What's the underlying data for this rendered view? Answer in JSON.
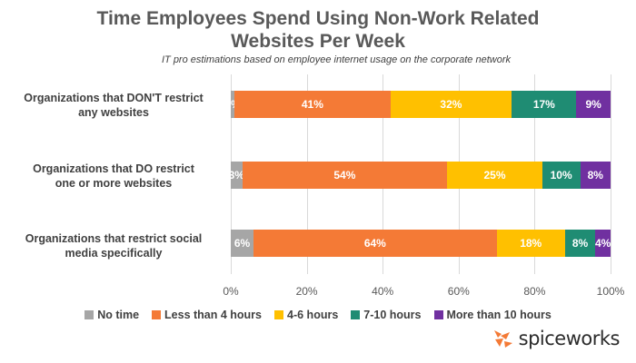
{
  "chart_data": {
    "type": "bar",
    "orientation": "horizontal-stacked",
    "title": "Time Employees Spend Using Non-Work Related Websites Per Week",
    "title_lines": [
      "Time Employees Spend Using Non-Work Related",
      "Websites Per Week"
    ],
    "subtitle": "IT pro estimations based on employee internet usage on the corporate network",
    "categories": [
      "Organizations that DON'T restrict any websites",
      "Organizations that DO restrict one or more websites",
      "Organizations that restrict social media specifically"
    ],
    "category_lines": [
      [
        "Organizations that DON'T restrict",
        "any websites"
      ],
      [
        "Organizations that DO restrict",
        "one or more websites"
      ],
      [
        "Organizations that restrict social",
        "media specifically"
      ]
    ],
    "series": [
      {
        "name": "No time",
        "color": "#a6a6a6",
        "values": [
          1,
          3,
          6
        ]
      },
      {
        "name": "Less than 4 hours",
        "color": "#f47a36",
        "values": [
          41,
          54,
          64
        ]
      },
      {
        "name": "4-6 hours",
        "color": "#ffc000",
        "values": [
          32,
          25,
          18
        ]
      },
      {
        "name": "7-10 hours",
        "color": "#1f8c73",
        "values": [
          17,
          10,
          8
        ]
      },
      {
        "name": "More than 10 hours",
        "color": "#7030a0",
        "values": [
          9,
          8,
          4
        ]
      }
    ],
    "xlim": [
      0,
      100
    ],
    "x_ticks": [
      "0%",
      "20%",
      "40%",
      "60%",
      "80%",
      "100%"
    ],
    "grid": true,
    "legend_position": "bottom"
  },
  "brand": {
    "name": "spiceworks",
    "icon": "spiceworks-logo-icon",
    "icon_color": "#f47a36"
  }
}
